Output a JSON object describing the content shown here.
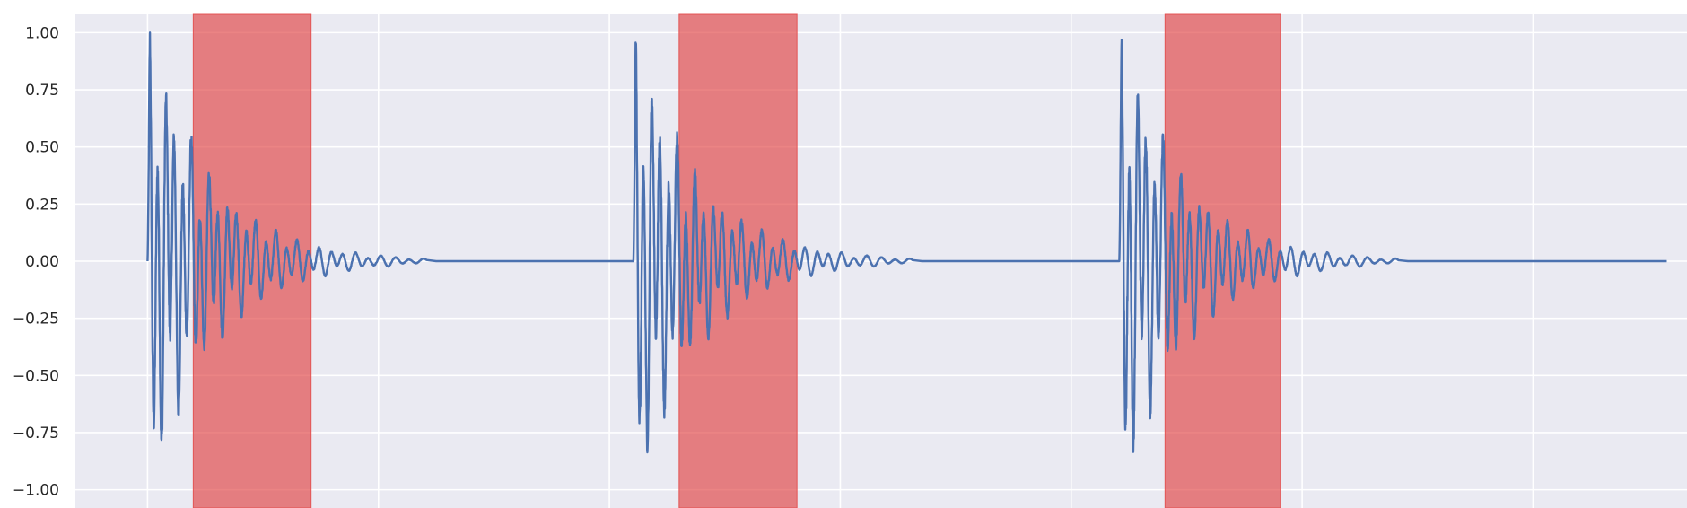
{
  "chart_data": {
    "type": "line",
    "title": "",
    "xlabel": "",
    "ylabel": "",
    "ylim": [
      -1.08,
      1.08
    ],
    "xlim": [
      -0.15,
      3.2
    ],
    "yticks": [
      1.0,
      0.75,
      0.5,
      0.25,
      0.0,
      -0.25,
      -0.5,
      -0.75,
      -1.0
    ],
    "ytick_labels": [
      "1.00",
      "0.75",
      "0.50",
      "0.25",
      "0.00",
      "−0.25",
      "−0.50",
      "−0.75",
      "−1.00"
    ],
    "x_gridlines": [
      0.0,
      0.48,
      0.96,
      1.44,
      1.92,
      2.4,
      2.88
    ],
    "grid": true,
    "bursts": [
      {
        "onset": 0.0,
        "peak": 1.0,
        "trough": -1.0
      },
      {
        "onset": 1.01,
        "peak": 1.0,
        "trough": -1.0
      },
      {
        "onset": 2.02,
        "peak": 1.0,
        "trough": -0.98
      }
    ],
    "series": [
      {
        "values_note": "",
        "color": "#4c72b0"
      }
    ],
    "highlight_regions": [
      {
        "x_start": 0.095,
        "x_end": 0.34,
        "color": "#e24a4a"
      },
      {
        "x_start": 1.105,
        "x_end": 1.35,
        "color": "#e24a4a"
      },
      {
        "x_start": 2.115,
        "x_end": 2.355,
        "color": "#e24a4a"
      }
    ],
    "colors": {
      "background": "#eaeaf2",
      "grid": "#ffffff",
      "line": "#4c72b0",
      "span": "#e24a4a"
    }
  }
}
